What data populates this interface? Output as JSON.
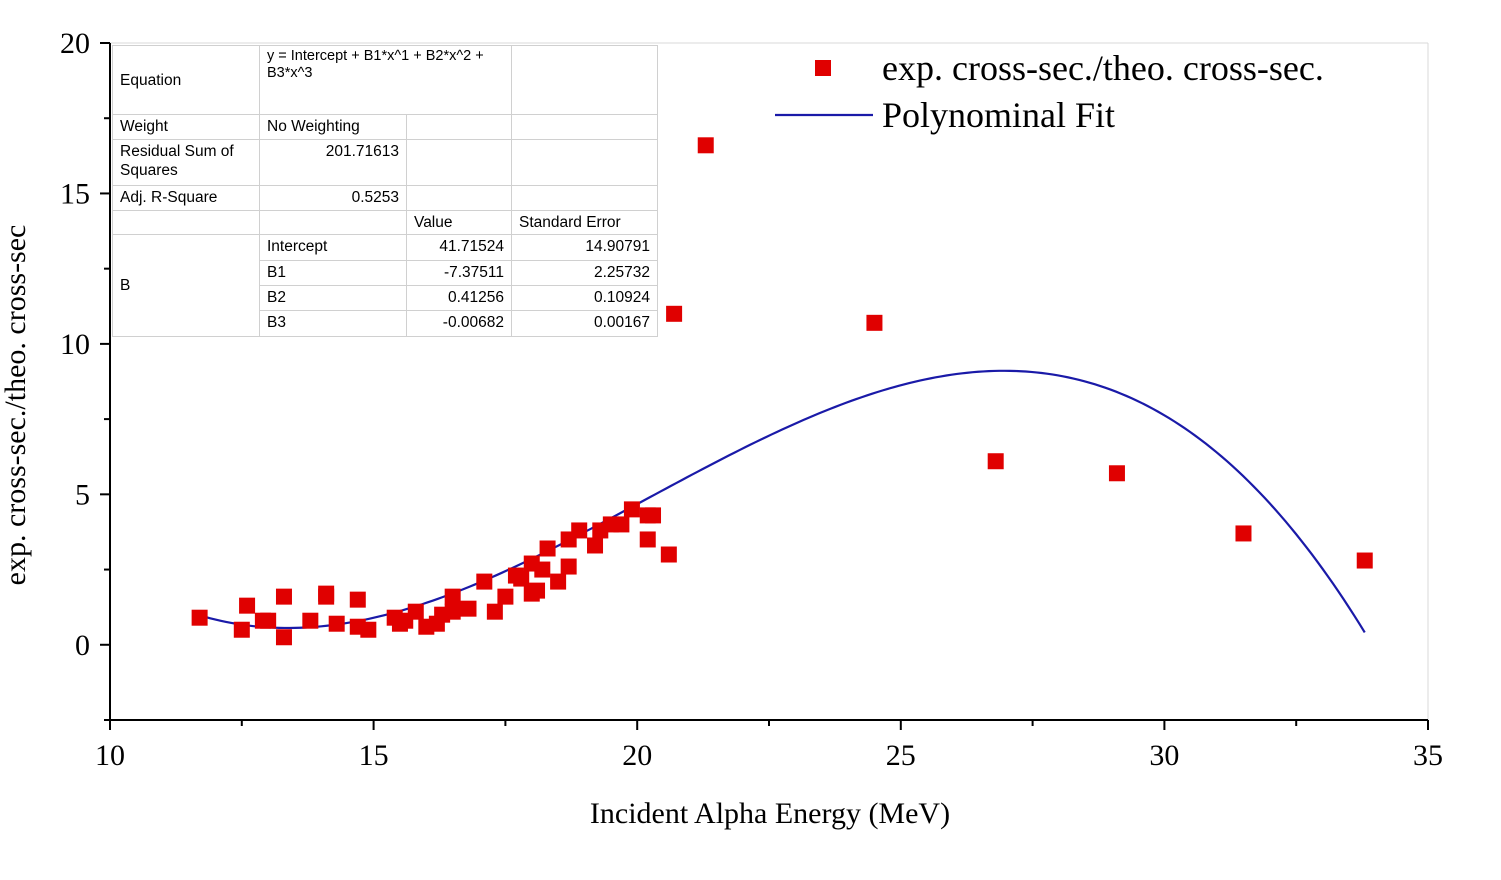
{
  "chart_data": {
    "type": "scatter",
    "xlabel": "Incident Alpha Energy (MeV)",
    "ylabel": "exp. cross-sec./theo. cross-sec",
    "xlim": [
      10,
      35
    ],
    "ylim": [
      -2.5,
      20
    ],
    "x_ticks": [
      "10",
      "15",
      "20",
      "25",
      "30",
      "35"
    ],
    "y_ticks": [
      "0",
      "5",
      "10",
      "15",
      "20"
    ],
    "legend_position": "top-right",
    "grid": false,
    "series": [
      {
        "name": "exp. cross-sec./theo. cross-sec.",
        "kind": "scatter",
        "color": "#e00000",
        "marker": "square",
        "x": [
          11.7,
          12.5,
          12.6,
          12.9,
          13.0,
          13.3,
          13.3,
          13.8,
          14.1,
          14.1,
          14.3,
          14.7,
          14.7,
          14.9,
          15.4,
          15.5,
          15.6,
          15.8,
          16.0,
          16.2,
          16.3,
          16.5,
          16.5,
          16.8,
          17.1,
          17.3,
          17.5,
          17.7,
          17.8,
          18.0,
          18.0,
          18.1,
          18.2,
          18.3,
          18.5,
          18.7,
          18.7,
          18.9,
          19.2,
          19.3,
          19.5,
          19.7,
          19.9,
          20.2,
          20.2,
          20.3,
          20.6,
          20.7,
          21.3,
          24.5,
          26.8,
          29.1,
          31.5,
          33.8
        ],
        "y": [
          0.9,
          0.5,
          1.3,
          0.8,
          0.8,
          1.6,
          0.25,
          0.8,
          1.7,
          1.6,
          0.7,
          1.5,
          0.6,
          0.5,
          0.9,
          0.7,
          0.8,
          1.1,
          0.6,
          0.7,
          1.0,
          1.1,
          1.6,
          1.2,
          2.1,
          1.1,
          1.6,
          2.3,
          2.2,
          2.7,
          1.7,
          1.8,
          2.5,
          3.2,
          2.1,
          3.5,
          2.6,
          3.8,
          3.3,
          3.8,
          4.0,
          4.0,
          4.5,
          3.5,
          4.3,
          4.3,
          3.0,
          11.0,
          16.6,
          10.7,
          6.1,
          5.7,
          3.7,
          2.8
        ]
      },
      {
        "name": "Polynominal Fit",
        "kind": "line",
        "color": "#1a1aa8",
        "x_range": [
          11.7,
          33.8
        ],
        "coefficients": {
          "intercept": 41.71524,
          "b1": -7.37511,
          "b2": 0.41256,
          "b3": -0.00682
        }
      }
    ]
  },
  "fit_table": {
    "equation_label": "Equation",
    "equation_value": "y = Intercept + B1*x^1 + B2*x^2 + B3*x^3",
    "weight_label": "Weight",
    "weight_value": "No Weighting",
    "rss_label": "Residual Sum of Squares",
    "rss_value": "201.71613",
    "r2_label": "Adj. R-Square",
    "r2_value": "0.5253",
    "value_header": "Value",
    "stderr_header": "Standard Error",
    "group_label": "B",
    "params": [
      {
        "name": "Intercept",
        "value": "41.71524",
        "stderr": "14.90791"
      },
      {
        "name": "B1",
        "value": "-7.37511",
        "stderr": "2.25732"
      },
      {
        "name": "B2",
        "value": "0.41256",
        "stderr": "0.10924"
      },
      {
        "name": "B3",
        "value": "-0.00682",
        "stderr": "0.00167"
      }
    ]
  }
}
